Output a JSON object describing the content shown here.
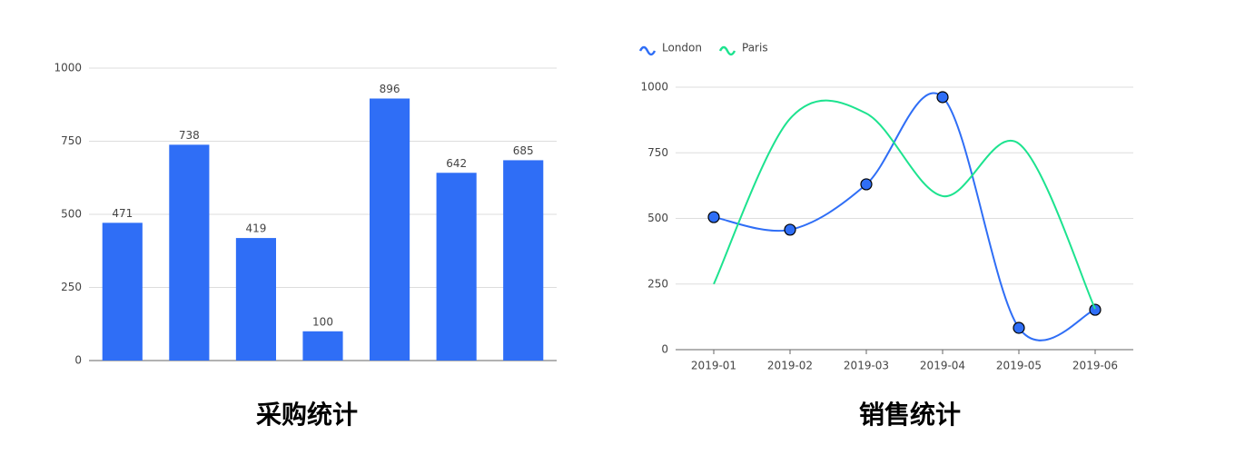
{
  "chart_data": [
    {
      "type": "bar",
      "title": "采购统计",
      "categories": [
        null,
        null,
        null,
        null,
        null,
        null,
        null
      ],
      "values": [
        471,
        738,
        419,
        100,
        896,
        642,
        685
      ],
      "color": "#2f6ef6",
      "ylim": [
        0,
        1000
      ],
      "yticks": [
        0,
        250,
        500,
        750,
        1000
      ],
      "grid": true
    },
    {
      "type": "line",
      "title": "销售统计",
      "categories": [
        "2019-01",
        "2019-02",
        "2019-03",
        "2019-04",
        "2019-05",
        "2019-06"
      ],
      "series": [
        {
          "name": "London",
          "color": "#2f6ef6",
          "values": [
            505,
            457,
            630,
            962,
            83,
            152
          ]
        },
        {
          "name": "Paris",
          "color": "#1de38f",
          "values": [
            250,
            880,
            900,
            585,
            785,
            155
          ]
        }
      ],
      "ylim": [
        0,
        1000
      ],
      "yticks": [
        0,
        250,
        500,
        750,
        1000
      ],
      "grid": true
    }
  ]
}
